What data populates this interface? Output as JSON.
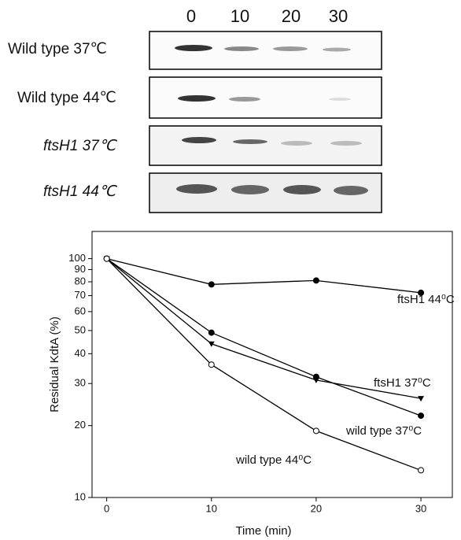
{
  "blot": {
    "lanes": [
      "0",
      "10",
      "20",
      "30"
    ],
    "rows": [
      "Wild type  37℃",
      "Wild type 44℃",
      "ftsH1  37℃",
      "ftsH1  44℃"
    ]
  },
  "chart_data": {
    "type": "line",
    "y_label": "Residual KdtA (%)",
    "x_label": "Time (min)",
    "log_y": true,
    "x": [
      0,
      10,
      20,
      30
    ],
    "xlim": [
      -1.4,
      33
    ],
    "xticks": [
      0,
      10,
      20,
      30
    ],
    "ylim": [
      10,
      130
    ],
    "yticks": [
      10,
      20,
      30,
      40,
      50,
      60,
      70,
      80,
      90,
      100
    ],
    "series": [
      {
        "name": "ftsH1 44⁰C",
        "color": "#000000",
        "marker": "filled-circle",
        "values": [
          100,
          78,
          81,
          72
        ]
      },
      {
        "name": "ftsH1 37⁰C",
        "color": "#000000",
        "marker": "triangle",
        "values": [
          100,
          44,
          31,
          26
        ]
      },
      {
        "name": "wild type 37⁰C",
        "color": "#000000",
        "marker": "filled-circle",
        "values": [
          100,
          49,
          32,
          22
        ]
      },
      {
        "name": "wild type 44⁰C",
        "color": "#000000",
        "marker": "open-circle",
        "values": [
          100,
          36,
          19,
          13
        ]
      }
    ]
  }
}
